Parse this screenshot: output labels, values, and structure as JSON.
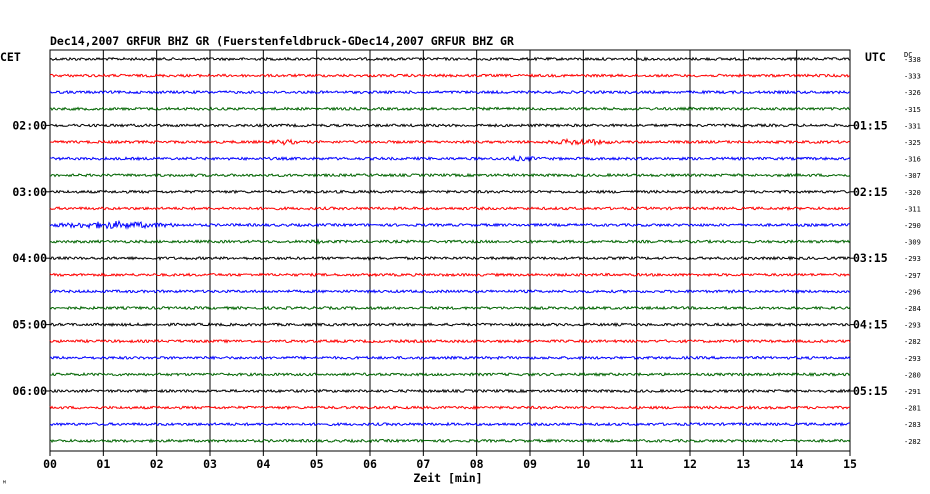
{
  "chart_data": {
    "type": "line",
    "title": "Dec14,2007   GRFUR BHZ GR (Fuerstenfeldbruck-GDec14,2007   GRFUR BHZ GR",
    "xlabel": "Zeit [min]",
    "left_axis_label": "CET",
    "right_axis_label": "UTC",
    "dc_label": "DC",
    "x_ticks": [
      "00",
      "01",
      "02",
      "03",
      "04",
      "05",
      "06",
      "07",
      "08",
      "09",
      "10",
      "11",
      "12",
      "13",
      "14",
      "15"
    ],
    "xlim": [
      0,
      15
    ],
    "left_time_labels": [
      {
        "row": 4,
        "label": "02:00"
      },
      {
        "row": 8,
        "label": "03:00"
      },
      {
        "row": 12,
        "label": "04:00"
      },
      {
        "row": 16,
        "label": "05:00"
      },
      {
        "row": 20,
        "label": "06:00"
      }
    ],
    "right_time_labels": [
      {
        "row": 4,
        "label": "01:15"
      },
      {
        "row": 8,
        "label": "02:15"
      },
      {
        "row": 12,
        "label": "03:15"
      },
      {
        "row": 16,
        "label": "04:15"
      },
      {
        "row": 20,
        "label": "05:15"
      }
    ],
    "dc_offsets": [
      -338,
      -333,
      -326,
      -315,
      -331,
      -325,
      -316,
      -307,
      -320,
      -311,
      -290,
      -309,
      -293,
      -297,
      -296,
      -284,
      -293,
      -282,
      -293,
      -280,
      -291,
      -281,
      -283,
      -282
    ],
    "trace_colors": [
      "#000000",
      "#ff0000",
      "#0000ff",
      "#006400"
    ],
    "events": [
      {
        "row": 0,
        "start_min": 0.0,
        "end_min": 0.9,
        "amp": 1.6
      },
      {
        "row": 0,
        "start_min": 1.1,
        "end_min": 1.5,
        "amp": 1.4
      },
      {
        "row": 5,
        "start_min": 4.1,
        "end_min": 4.7,
        "amp": 3.0
      },
      {
        "row": 5,
        "start_min": 9.3,
        "end_min": 10.6,
        "amp": 3.5
      },
      {
        "row": 6,
        "start_min": 8.2,
        "end_min": 9.4,
        "amp": 2.5
      },
      {
        "row": 10,
        "start_min": 0.0,
        "end_min": 2.4,
        "amp": 4.0
      },
      {
        "row": 11,
        "start_min": 4.8,
        "end_min": 5.2,
        "amp": 2.5
      },
      {
        "row": 22,
        "start_min": 13.8,
        "end_min": 14.3,
        "amp": 1.5
      }
    ],
    "grid": true,
    "footer_mark": "ᴹ"
  }
}
